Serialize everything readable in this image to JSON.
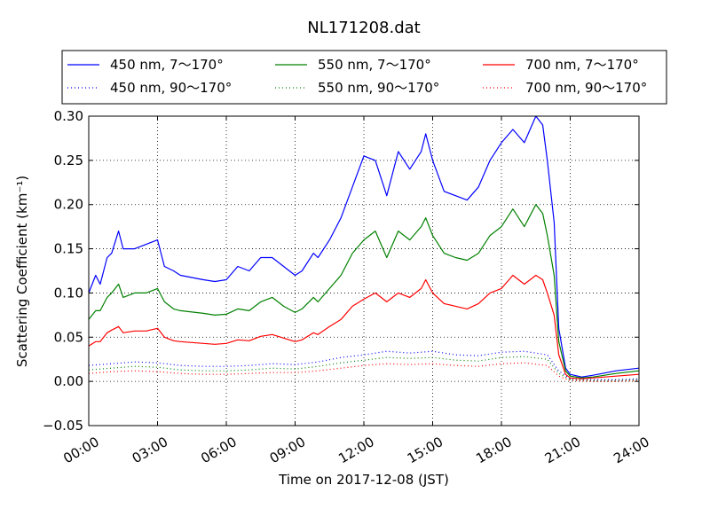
{
  "chart_data": {
    "type": "line",
    "title": "NL171208.dat",
    "xlabel": "Time on 2017-12-08 (JST)",
    "ylabel": "Scattering Coefficient (km⁻¹)",
    "xlim": [
      0,
      24
    ],
    "ylim": [
      -0.05,
      0.3
    ],
    "x_ticks": [
      0,
      3,
      6,
      9,
      12,
      15,
      18,
      21,
      24
    ],
    "x_tick_labels": [
      "00:00",
      "03:00",
      "06:00",
      "09:00",
      "12:00",
      "15:00",
      "18:00",
      "21:00",
      "24:00"
    ],
    "y_ticks": [
      -0.05,
      0.0,
      0.05,
      0.1,
      0.15,
      0.2,
      0.25,
      0.3
    ],
    "y_tick_labels": [
      "−0.05",
      "0.00",
      "0.05",
      "0.10",
      "0.15",
      "0.20",
      "0.25",
      "0.30"
    ],
    "grid": true,
    "legend_position": "top, above plot (3 columns)",
    "x_unit": "hours (JST)",
    "series": [
      {
        "name": "450 nm, 7～170°",
        "color": "#0000ff",
        "style": "solid",
        "x": [
          0,
          0.3,
          0.5,
          0.8,
          1.0,
          1.3,
          1.5,
          2.0,
          2.5,
          3.0,
          3.3,
          3.7,
          4.0,
          5.0,
          5.5,
          6.0,
          6.5,
          7.0,
          7.5,
          8.0,
          8.5,
          9.0,
          9.3,
          9.8,
          10.0,
          10.5,
          11.0,
          11.5,
          12.0,
          12.5,
          13.0,
          13.5,
          14.0,
          14.5,
          14.7,
          15.0,
          15.5,
          16.0,
          16.5,
          17.0,
          17.5,
          18.0,
          18.5,
          19.0,
          19.5,
          19.8,
          20.0,
          20.3,
          20.5,
          20.8,
          21.0,
          21.5,
          22.0,
          23.0,
          24.0
        ],
        "y": [
          0.1,
          0.12,
          0.11,
          0.14,
          0.145,
          0.17,
          0.15,
          0.15,
          0.155,
          0.16,
          0.13,
          0.125,
          0.12,
          0.115,
          0.113,
          0.115,
          0.13,
          0.125,
          0.14,
          0.14,
          0.13,
          0.12,
          0.125,
          0.145,
          0.14,
          0.16,
          0.185,
          0.22,
          0.255,
          0.25,
          0.21,
          0.26,
          0.24,
          0.26,
          0.28,
          0.25,
          0.215,
          0.21,
          0.205,
          0.22,
          0.25,
          0.27,
          0.285,
          0.27,
          0.3,
          0.29,
          0.25,
          0.18,
          0.06,
          0.015,
          0.008,
          0.005,
          0.007,
          0.012,
          0.015
        ]
      },
      {
        "name": "550 nm, 7～170°",
        "color": "#008000",
        "style": "solid",
        "x": [
          0,
          0.3,
          0.5,
          0.8,
          1.0,
          1.3,
          1.5,
          2.0,
          2.5,
          3.0,
          3.3,
          3.7,
          4.0,
          5.0,
          5.5,
          6.0,
          6.5,
          7.0,
          7.5,
          8.0,
          8.5,
          9.0,
          9.3,
          9.8,
          10.0,
          10.5,
          11.0,
          11.5,
          12.0,
          12.5,
          13.0,
          13.5,
          14.0,
          14.5,
          14.7,
          15.0,
          15.5,
          16.0,
          16.5,
          17.0,
          17.5,
          18.0,
          18.5,
          19.0,
          19.5,
          19.8,
          20.0,
          20.3,
          20.5,
          20.8,
          21.0,
          21.5,
          22.0,
          23.0,
          24.0
        ],
        "y": [
          0.07,
          0.08,
          0.08,
          0.095,
          0.1,
          0.11,
          0.095,
          0.1,
          0.1,
          0.105,
          0.09,
          0.082,
          0.08,
          0.077,
          0.075,
          0.076,
          0.082,
          0.08,
          0.09,
          0.095,
          0.085,
          0.078,
          0.082,
          0.095,
          0.09,
          0.105,
          0.12,
          0.145,
          0.16,
          0.17,
          0.14,
          0.17,
          0.16,
          0.175,
          0.185,
          0.165,
          0.145,
          0.14,
          0.137,
          0.145,
          0.165,
          0.175,
          0.195,
          0.175,
          0.2,
          0.19,
          0.165,
          0.12,
          0.045,
          0.012,
          0.006,
          0.004,
          0.005,
          0.009,
          0.012
        ]
      },
      {
        "name": "700 nm, 7～170°",
        "color": "#ff0000",
        "style": "solid",
        "x": [
          0,
          0.3,
          0.5,
          0.8,
          1.0,
          1.3,
          1.5,
          2.0,
          2.5,
          3.0,
          3.3,
          3.7,
          4.0,
          5.0,
          5.5,
          6.0,
          6.5,
          7.0,
          7.5,
          8.0,
          8.5,
          9.0,
          9.3,
          9.8,
          10.0,
          10.5,
          11.0,
          11.5,
          12.0,
          12.5,
          13.0,
          13.5,
          14.0,
          14.5,
          14.7,
          15.0,
          15.5,
          16.0,
          16.5,
          17.0,
          17.5,
          18.0,
          18.5,
          19.0,
          19.5,
          19.8,
          20.0,
          20.3,
          20.5,
          20.8,
          21.0,
          21.5,
          22.0,
          23.0,
          24.0
        ],
        "y": [
          0.04,
          0.045,
          0.045,
          0.055,
          0.058,
          0.062,
          0.055,
          0.057,
          0.057,
          0.06,
          0.05,
          0.046,
          0.045,
          0.043,
          0.042,
          0.043,
          0.047,
          0.046,
          0.051,
          0.053,
          0.049,
          0.045,
          0.047,
          0.055,
          0.053,
          0.062,
          0.07,
          0.085,
          0.093,
          0.1,
          0.09,
          0.1,
          0.095,
          0.105,
          0.115,
          0.1,
          0.088,
          0.085,
          0.082,
          0.088,
          0.1,
          0.105,
          0.12,
          0.11,
          0.12,
          0.115,
          0.1,
          0.075,
          0.03,
          0.008,
          0.004,
          0.003,
          0.004,
          0.006,
          0.008
        ]
      },
      {
        "name": "450 nm, 90～170°",
        "color": "#0000ff",
        "style": "dotted",
        "x": [
          0,
          1,
          2,
          3,
          4,
          5,
          6,
          7,
          8,
          9,
          10,
          11,
          12,
          13,
          14,
          15,
          16,
          17,
          18,
          19,
          20,
          20.5,
          21,
          22,
          23,
          24
        ],
        "y": [
          0.018,
          0.02,
          0.022,
          0.021,
          0.018,
          0.017,
          0.017,
          0.018,
          0.02,
          0.019,
          0.022,
          0.027,
          0.03,
          0.034,
          0.032,
          0.034,
          0.03,
          0.029,
          0.033,
          0.034,
          0.03,
          0.012,
          0.003,
          0.002,
          0.002,
          0.003
        ]
      },
      {
        "name": "550 nm, 90～170°",
        "color": "#008000",
        "style": "dotted",
        "x": [
          0,
          1,
          2,
          3,
          4,
          5,
          6,
          7,
          8,
          9,
          10,
          11,
          12,
          13,
          14,
          15,
          16,
          17,
          18,
          19,
          20,
          20.5,
          21,
          22,
          23,
          24
        ],
        "y": [
          0.013,
          0.015,
          0.017,
          0.016,
          0.013,
          0.012,
          0.012,
          0.013,
          0.015,
          0.014,
          0.017,
          0.021,
          0.024,
          0.027,
          0.026,
          0.027,
          0.024,
          0.023,
          0.027,
          0.028,
          0.025,
          0.009,
          0.002,
          0.001,
          0.001,
          0.002
        ]
      },
      {
        "name": "700 nm, 90～170°",
        "color": "#ff0000",
        "style": "dotted",
        "x": [
          0,
          1,
          2,
          3,
          4,
          5,
          6,
          7,
          8,
          9,
          10,
          11,
          12,
          13,
          14,
          15,
          16,
          17,
          18,
          19,
          20,
          20.5,
          21,
          22,
          23,
          24
        ],
        "y": [
          0.009,
          0.011,
          0.012,
          0.011,
          0.009,
          0.008,
          0.008,
          0.009,
          0.01,
          0.01,
          0.012,
          0.015,
          0.018,
          0.02,
          0.019,
          0.02,
          0.018,
          0.017,
          0.02,
          0.021,
          0.018,
          0.006,
          0.001,
          0.0,
          0.0,
          0.001
        ]
      }
    ]
  }
}
